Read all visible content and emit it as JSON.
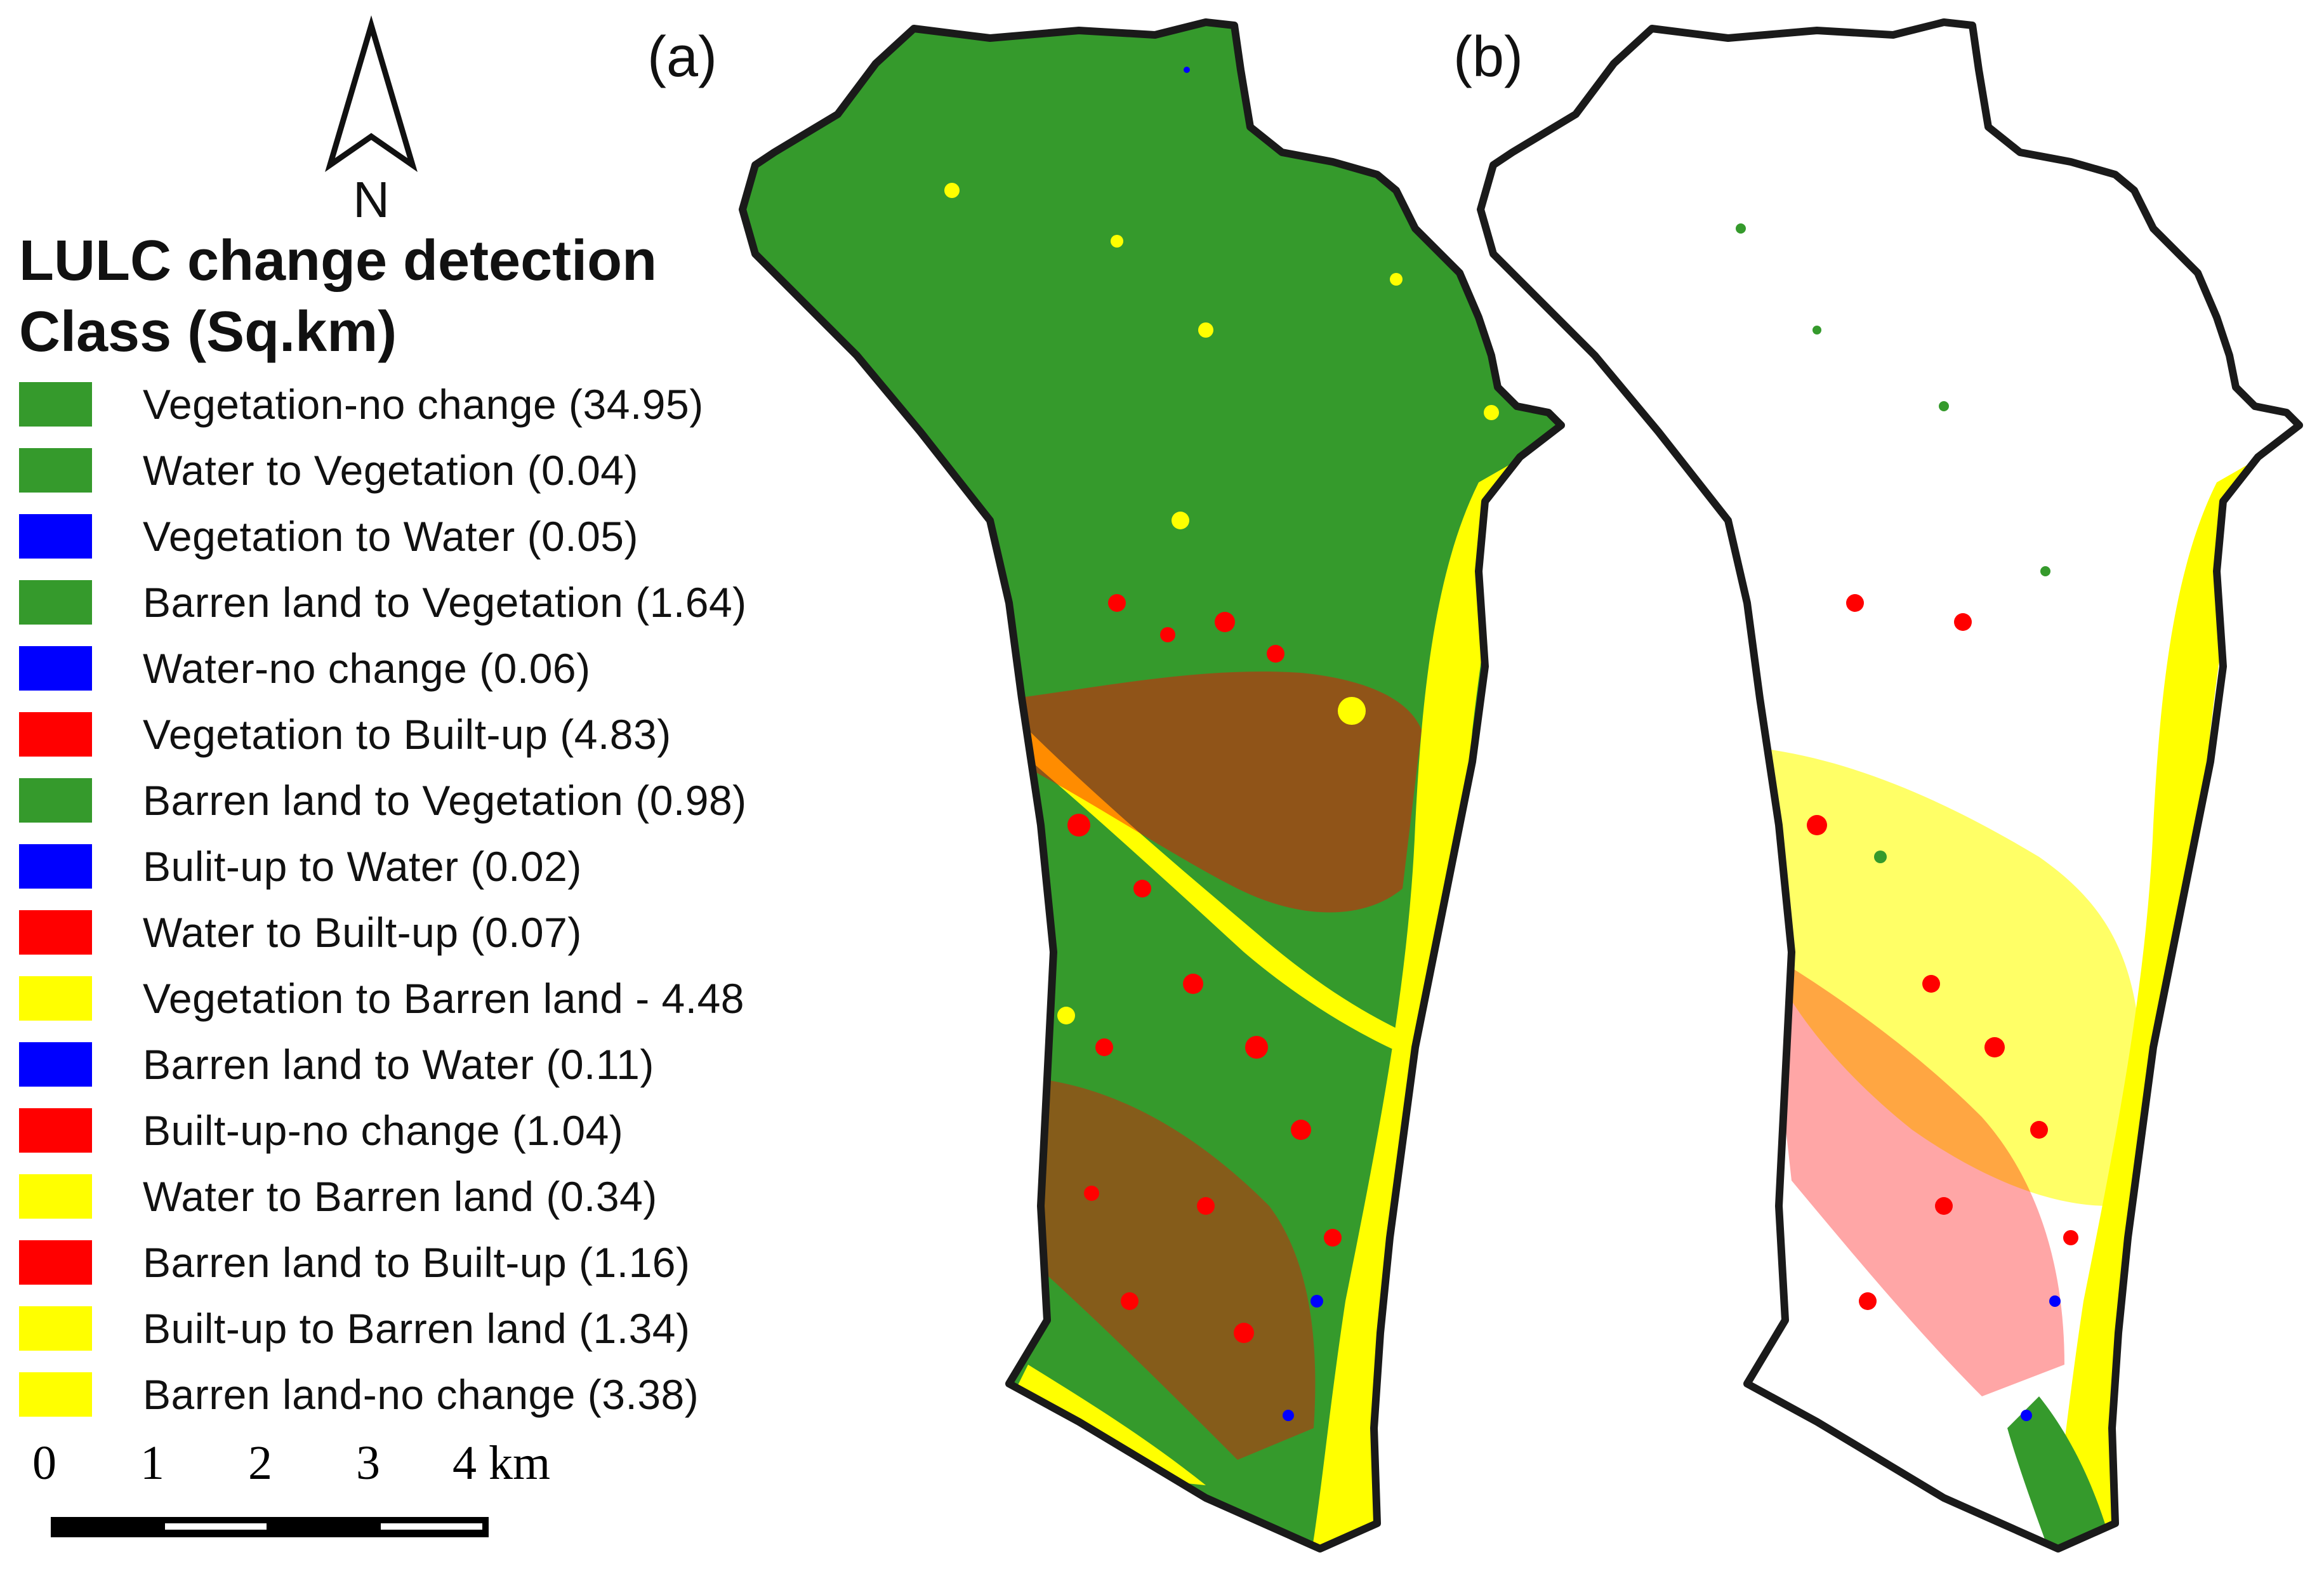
{
  "north_arrow": {
    "label": "N"
  },
  "legend": {
    "title_line1": "LULC change detection",
    "title_line2": "Class (Sq.km)",
    "items": [
      {
        "label": "Vegetation-no change (34.95)",
        "color": "#359a2c"
      },
      {
        "label": "Water to Vegetation  (0.04)",
        "color": "#359a2c"
      },
      {
        "label": "Vegetation to Water  (0.05)",
        "color": "#0000ff"
      },
      {
        "label": "Barren land to Vegetation  (1.64)",
        "color": "#359a2c"
      },
      {
        "label": "Water-no change  (0.06)",
        "color": "#0000ff"
      },
      {
        "label": "Vegetation to Built-up (4.83)",
        "color": "#ff0000"
      },
      {
        "label": "Barren land to Vegetation  (0.98)",
        "color": "#359a2c"
      },
      {
        "label": "Bulit-up to Water  (0.02)",
        "color": "#0000ff"
      },
      {
        "label": "Water to Built-up (0.07)",
        "color": "#ff0000"
      },
      {
        "label": "Vegetation to Barren land - 4.48",
        "color": "#ffff00"
      },
      {
        "label": "Barren land to Water  (0.11)",
        "color": "#0000ff"
      },
      {
        "label": "Built-up-no change  (1.04)",
        "color": "#ff0000"
      },
      {
        "label": "Water to Barren land  (0.34)",
        "color": "#ffff00"
      },
      {
        "label": "Barren land to Built-up (1.16)",
        "color": "#ff0000"
      },
      {
        "label": "Built-up to Barren land  (1.34)",
        "color": "#ffff00"
      },
      {
        "label": "Barren land-no change (3.38)",
        "color": "#ffff00"
      }
    ]
  },
  "scale_bar": {
    "ticks": [
      "0",
      "1",
      "2",
      "3",
      "4 km"
    ]
  },
  "panels": [
    {
      "label": "(a)"
    },
    {
      "label": "(b)"
    }
  ],
  "colors": {
    "vegetation": "#359a2c",
    "water": "#0000ff",
    "built_up": "#ff0000",
    "barren": "#ffff00",
    "outline": "#1a1a1a"
  }
}
